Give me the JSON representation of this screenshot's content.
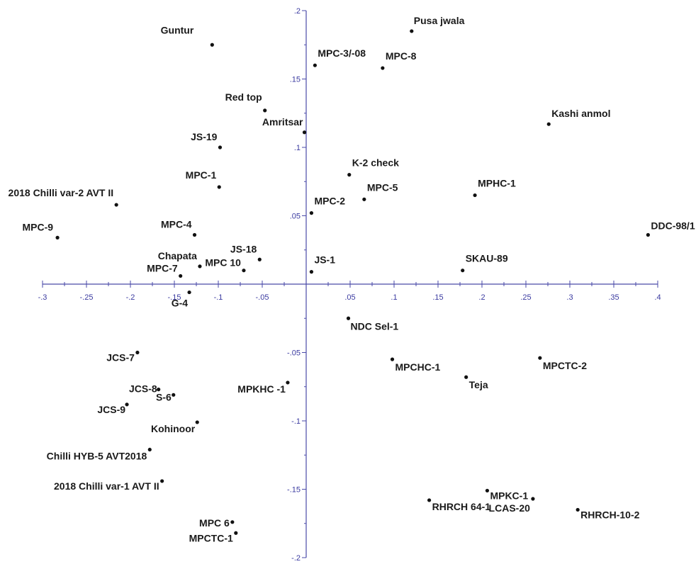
{
  "chart_data": {
    "type": "scatter",
    "title": "",
    "xlabel": "",
    "ylabel": "",
    "xlim": [
      -0.3,
      0.4
    ],
    "ylim": [
      -0.2,
      0.2
    ],
    "grid": false,
    "x_ticks": [
      {
        "value": -0.3,
        "label": "-.3"
      },
      {
        "value": -0.25,
        "label": "-.25"
      },
      {
        "value": -0.2,
        "label": "-.2"
      },
      {
        "value": -0.15,
        "label": "-.15"
      },
      {
        "value": -0.1,
        "label": "-.1"
      },
      {
        "value": -0.05,
        "label": "-.05"
      },
      {
        "value": 0.05,
        "label": ".05"
      },
      {
        "value": 0.1,
        "label": ".1"
      },
      {
        "value": 0.15,
        "label": ".15"
      },
      {
        "value": 0.2,
        "label": ".2"
      },
      {
        "value": 0.25,
        "label": ".25"
      },
      {
        "value": 0.3,
        "label": ".3"
      },
      {
        "value": 0.35,
        "label": ".35"
      },
      {
        "value": 0.4,
        "label": ".4"
      }
    ],
    "y_ticks": [
      {
        "value": 0.2,
        "label": ".2"
      },
      {
        "value": 0.15,
        "label": ".15"
      },
      {
        "value": 0.1,
        "label": ".1"
      },
      {
        "value": 0.05,
        "label": ".05"
      },
      {
        "value": -0.05,
        "label": "-.05"
      },
      {
        "value": -0.1,
        "label": "-.1"
      },
      {
        "value": -0.15,
        "label": "-.15"
      },
      {
        "value": -0.2,
        "label": "-.2"
      }
    ],
    "points": [
      {
        "label": "Pusa jwala",
        "x": 0.12,
        "y": 0.185
      },
      {
        "label": "Guntur",
        "x": -0.107,
        "y": 0.175
      },
      {
        "label": "MPC-3/-08",
        "x": 0.01,
        "y": 0.16
      },
      {
        "label": "MPC-8",
        "x": 0.087,
        "y": 0.158
      },
      {
        "label": "Red top",
        "x": -0.047,
        "y": 0.127
      },
      {
        "label": "Amritsar",
        "x": -0.002,
        "y": 0.111
      },
      {
        "label": "Kashi anmol",
        "x": 0.276,
        "y": 0.117
      },
      {
        "label": "JS-19",
        "x": -0.098,
        "y": 0.1
      },
      {
        "label": "K-2 check",
        "x": 0.049,
        "y": 0.08
      },
      {
        "label": "MPC-1",
        "x": -0.099,
        "y": 0.071
      },
      {
        "label": "MPC-5",
        "x": 0.066,
        "y": 0.062
      },
      {
        "label": "MPHC-1",
        "x": 0.192,
        "y": 0.065
      },
      {
        "label": "2018 Chilli var-2 AVT II",
        "x": -0.216,
        "y": 0.058
      },
      {
        "label": "MPC-2",
        "x": 0.006,
        "y": 0.052
      },
      {
        "label": "MPC-9",
        "x": -0.283,
        "y": 0.034
      },
      {
        "label": "MPC-4",
        "x": -0.127,
        "y": 0.036
      },
      {
        "label": "DDC-98/1",
        "x": 0.389,
        "y": 0.036
      },
      {
        "label": "Chapata",
        "x": -0.121,
        "y": 0.013
      },
      {
        "label": "MPC 10",
        "x": -0.071,
        "y": 0.01
      },
      {
        "label": "JS-18",
        "x": -0.053,
        "y": 0.018
      },
      {
        "label": "MPC-7",
        "x": -0.143,
        "y": 0.006
      },
      {
        "label": "JS-1",
        "x": 0.006,
        "y": 0.009
      },
      {
        "label": "SKAU-89",
        "x": 0.178,
        "y": 0.01
      },
      {
        "label": "G-4",
        "x": -0.133,
        "y": -0.006
      },
      {
        "label": "NDC Sel-1",
        "x": 0.048,
        "y": -0.025
      },
      {
        "label": "MPCHC-1",
        "x": 0.098,
        "y": -0.055
      },
      {
        "label": "MPCTC-2",
        "x": 0.266,
        "y": -0.054
      },
      {
        "label": "Teja",
        "x": 0.182,
        "y": -0.068
      },
      {
        "label": "JCS-7",
        "x": -0.192,
        "y": -0.05
      },
      {
        "label": "MPKHC -1",
        "x": -0.021,
        "y": -0.072
      },
      {
        "label": "JCS-8",
        "x": -0.168,
        "y": -0.077
      },
      {
        "label": "S-6",
        "x": -0.151,
        "y": -0.081
      },
      {
        "label": "JCS-9",
        "x": -0.204,
        "y": -0.088
      },
      {
        "label": "Kohinoor",
        "x": -0.124,
        "y": -0.101
      },
      {
        "label": "Chilli HYB-5 AVT2018",
        "x": -0.178,
        "y": -0.121
      },
      {
        "label": "2018 Chilli var-1 AVT II",
        "x": -0.164,
        "y": -0.144
      },
      {
        "label": "MPKC-1",
        "x": 0.206,
        "y": -0.151
      },
      {
        "label": "RHRCH 64-1",
        "x": 0.14,
        "y": -0.158
      },
      {
        "label": "LCAS-20",
        "x": 0.258,
        "y": -0.157
      },
      {
        "label": "RHRCH-10-2",
        "x": 0.309,
        "y": -0.165
      },
      {
        "label": "MPC 6",
        "x": -0.084,
        "y": -0.174
      },
      {
        "label": "MPCTC-1",
        "x": -0.08,
        "y": -0.182
      }
    ]
  },
  "colors": {
    "axis": "#4a4aa8",
    "tick_text": "#3a3aa0",
    "point": "#111111",
    "label": "#1a1a1a"
  }
}
